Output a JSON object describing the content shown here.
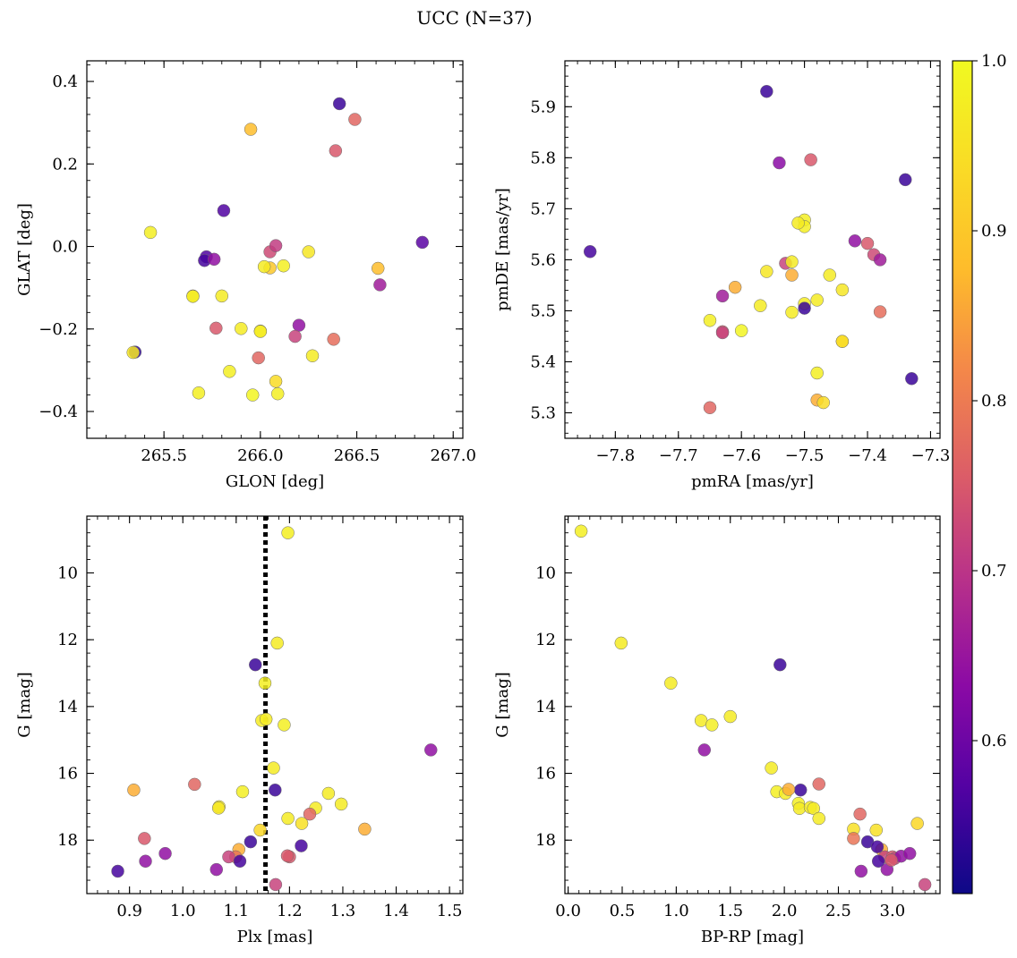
{
  "title": "UCC (N=37)",
  "colorbar": {
    "colormap": "plasma",
    "range": [
      0.51,
      1.0
    ],
    "ticks": [
      "0.6",
      "0.7",
      "0.8",
      "0.9",
      "1.0"
    ],
    "tick_values": [
      0.6,
      0.7,
      0.8,
      0.9,
      1.0
    ]
  },
  "chart_data": [
    {
      "type": "scatter",
      "xlabel": "GLON [deg]",
      "ylabel": "GLAT [deg]",
      "xlim": [
        265.1,
        267.05
      ],
      "ylim": [
        -0.465,
        0.45
      ],
      "y_inverted": false,
      "xticks": [
        265.5,
        266.0,
        266.5,
        267.0
      ],
      "xtick_labels": [
        "265.5",
        "266.0",
        "266.5",
        "267.0"
      ],
      "yticks": [
        -0.4,
        -0.2,
        0.0,
        0.2,
        0.4
      ],
      "ytick_labels": [
        "−0.4",
        "−0.2",
        "0.0",
        "0.2",
        "0.4"
      ],
      "x": [
        266.41,
        266.49,
        265.95,
        266.39,
        265.81,
        266.84,
        265.43,
        266.05,
        266.08,
        265.72,
        265.71,
        265.76,
        266.61,
        266.05,
        266.12,
        266.02,
        266.25,
        265.65,
        265.8,
        266.62,
        266.2,
        265.35,
        265.34,
        265.77,
        265.9,
        266.0,
        266.18,
        266.38,
        265.99,
        266.27,
        265.84,
        266.08,
        265.68,
        265.96,
        266.09,
        266.0,
        265.65
      ],
      "y": [
        0.346,
        0.308,
        0.284,
        0.232,
        0.087,
        0.01,
        0.034,
        -0.013,
        0.002,
        -0.025,
        -0.034,
        -0.031,
        -0.053,
        -0.052,
        -0.047,
        -0.049,
        -0.013,
        -0.12,
        -0.12,
        -0.093,
        -0.191,
        -0.256,
        -0.257,
        -0.198,
        -0.199,
        -0.205,
        -0.218,
        -0.225,
        -0.27,
        -0.265,
        -0.303,
        -0.327,
        -0.355,
        -0.36,
        -0.357,
        -0.206,
        -0.121
      ],
      "c": [
        0.55,
        0.77,
        0.88,
        0.75,
        0.57,
        0.58,
        0.98,
        0.73,
        0.71,
        0.57,
        0.56,
        0.64,
        0.88,
        0.9,
        0.98,
        0.97,
        0.96,
        0.86,
        0.97,
        0.66,
        0.64,
        0.54,
        0.96,
        0.75,
        0.97,
        0.99,
        0.72,
        0.78,
        0.77,
        0.97,
        0.98,
        0.94,
        0.98,
        0.99,
        0.98,
        0.97,
        0.99
      ]
    },
    {
      "type": "scatter",
      "xlabel": "pmRA [mas/yr]",
      "ylabel": "pmDE [mas/yr]",
      "xlim": [
        -7.88,
        -7.285
      ],
      "ylim": [
        5.25,
        5.99
      ],
      "y_inverted": false,
      "xticks": [
        -7.8,
        -7.7,
        -7.6,
        -7.5,
        -7.4,
        -7.3
      ],
      "xtick_labels": [
        "−7.8",
        "−7.7",
        "−7.6",
        "−7.5",
        "−7.4",
        "−7.3"
      ],
      "yticks": [
        5.3,
        5.4,
        5.5,
        5.6,
        5.7,
        5.8,
        5.9
      ],
      "ytick_labels": [
        "5.3",
        "5.4",
        "5.5",
        "5.6",
        "5.7",
        "5.8",
        "5.9"
      ],
      "x": [
        -7.56,
        -7.54,
        -7.49,
        -7.34,
        -7.84,
        -7.5,
        -7.5,
        -7.51,
        -7.42,
        -7.4,
        -7.39,
        -7.38,
        -7.53,
        -7.52,
        -7.52,
        -7.56,
        -7.61,
        -7.63,
        -7.46,
        -7.44,
        -7.57,
        -7.5,
        -7.48,
        -7.52,
        -7.65,
        -7.38,
        -7.63,
        -7.6,
        -7.44,
        -7.33,
        -7.48,
        -7.48,
        -7.47,
        -7.65,
        -7.63,
        -7.5,
        -7.44
      ],
      "y": [
        5.93,
        5.79,
        5.796,
        5.757,
        5.616,
        5.678,
        5.665,
        5.672,
        5.637,
        5.632,
        5.61,
        5.6,
        5.593,
        5.596,
        5.57,
        5.577,
        5.546,
        5.529,
        5.57,
        5.541,
        5.51,
        5.514,
        5.521,
        5.497,
        5.481,
        5.498,
        5.459,
        5.461,
        5.44,
        5.367,
        5.378,
        5.325,
        5.32,
        5.31,
        5.457,
        5.505,
        5.44
      ],
      "c": [
        0.55,
        0.63,
        0.75,
        0.55,
        0.56,
        0.98,
        0.98,
        0.97,
        0.64,
        0.75,
        0.73,
        0.66,
        0.72,
        0.97,
        0.86,
        0.96,
        0.86,
        0.66,
        0.97,
        0.96,
        0.97,
        0.97,
        0.97,
        0.97,
        0.98,
        0.78,
        0.75,
        0.99,
        0.89,
        0.55,
        0.98,
        0.86,
        0.94,
        0.77,
        0.72,
        0.55,
        0.95
      ]
    },
    {
      "type": "scatter",
      "xlabel": "Plx [mas]",
      "ylabel": "G [mag]",
      "xlim": [
        0.82,
        1.525
      ],
      "ylim": [
        19.6,
        8.3
      ],
      "y_inverted": true,
      "xticks": [
        0.9,
        1.0,
        1.1,
        1.2,
        1.3,
        1.4,
        1.5
      ],
      "xtick_labels": [
        "0.9",
        "1.0",
        "1.1",
        "1.2",
        "1.3",
        "1.4",
        "1.5"
      ],
      "yticks": [
        10,
        12,
        14,
        16,
        18
      ],
      "ytick_labels": [
        "10",
        "12",
        "14",
        "16",
        "18"
      ],
      "vline": {
        "x": 1.155,
        "style": "dotted"
      },
      "x": [
        1.197,
        1.177,
        1.136,
        1.154,
        1.148,
        1.156,
        1.19,
        1.465,
        1.17,
        1.173,
        0.908,
        1.022,
        1.068,
        1.112,
        1.197,
        1.249,
        1.273,
        1.297,
        1.238,
        1.223,
        1.341,
        0.928,
        1.145,
        1.127,
        1.105,
        1.099,
        1.086,
        1.2,
        1.222,
        0.967,
        0.93,
        1.063,
        1.107,
        0.878,
        1.174,
        1.196,
        1.067
      ],
      "y": [
        8.8,
        12.1,
        12.75,
        13.3,
        14.42,
        14.38,
        14.55,
        15.3,
        15.84,
        16.5,
        16.5,
        16.33,
        17.0,
        16.55,
        17.35,
        17.04,
        16.6,
        16.92,
        17.22,
        17.5,
        17.67,
        17.95,
        17.7,
        18.05,
        18.28,
        18.5,
        18.5,
        18.5,
        18.17,
        18.4,
        18.63,
        18.88,
        18.63,
        18.93,
        19.33,
        18.47,
        17.04
      ],
      "c": [
        0.98,
        0.97,
        0.55,
        0.98,
        0.97,
        0.97,
        0.98,
        0.64,
        0.97,
        0.55,
        0.86,
        0.77,
        0.97,
        0.98,
        0.97,
        0.97,
        0.97,
        0.97,
        0.77,
        0.95,
        0.86,
        0.75,
        0.93,
        0.55,
        0.86,
        0.79,
        0.72,
        0.75,
        0.56,
        0.64,
        0.64,
        0.64,
        0.56,
        0.56,
        0.72,
        0.75,
        0.96
      ]
    },
    {
      "type": "scatter",
      "xlabel": "BP-RP [mag]",
      "ylabel": "G [mag]",
      "xlim": [
        -0.03,
        3.44
      ],
      "ylim": [
        19.6,
        8.3
      ],
      "y_inverted": true,
      "xticks": [
        0.0,
        0.5,
        1.0,
        1.5,
        2.0,
        2.5,
        3.0
      ],
      "xtick_labels": [
        "0.0",
        "0.5",
        "1.0",
        "1.5",
        "2.0",
        "2.5",
        "3.0"
      ],
      "yticks": [
        10,
        12,
        14,
        16,
        18
      ],
      "ytick_labels": [
        "10",
        "12",
        "14",
        "16",
        "18"
      ],
      "x": [
        0.12,
        0.49,
        0.95,
        1.96,
        1.23,
        1.33,
        1.5,
        1.26,
        1.88,
        1.93,
        2.01,
        2.15,
        2.04,
        2.32,
        2.13,
        2.14,
        2.24,
        2.27,
        2.32,
        2.7,
        2.64,
        3.23,
        2.64,
        2.85,
        2.77,
        2.9,
        2.93,
        2.86,
        3.0,
        3.02,
        3.08,
        3.16,
        2.95,
        2.99,
        2.71,
        2.87,
        3.3
      ],
      "y": [
        8.75,
        12.1,
        13.3,
        12.75,
        14.42,
        14.55,
        14.3,
        15.3,
        15.84,
        16.55,
        16.6,
        16.5,
        16.48,
        16.32,
        16.9,
        17.05,
        17.02,
        17.05,
        17.35,
        17.22,
        17.67,
        17.5,
        17.95,
        17.7,
        18.05,
        18.28,
        18.5,
        18.2,
        18.5,
        18.55,
        18.48,
        18.4,
        18.88,
        18.6,
        18.93,
        18.63,
        19.33
      ],
      "c": [
        0.98,
        0.97,
        0.97,
        0.55,
        0.97,
        0.98,
        0.97,
        0.64,
        0.97,
        0.98,
        0.97,
        0.55,
        0.86,
        0.77,
        0.98,
        0.97,
        0.97,
        0.97,
        0.97,
        0.77,
        0.95,
        0.93,
        0.79,
        0.95,
        0.55,
        0.86,
        0.72,
        0.56,
        0.75,
        0.72,
        0.64,
        0.64,
        0.64,
        0.75,
        0.64,
        0.56,
        0.72
      ]
    }
  ]
}
